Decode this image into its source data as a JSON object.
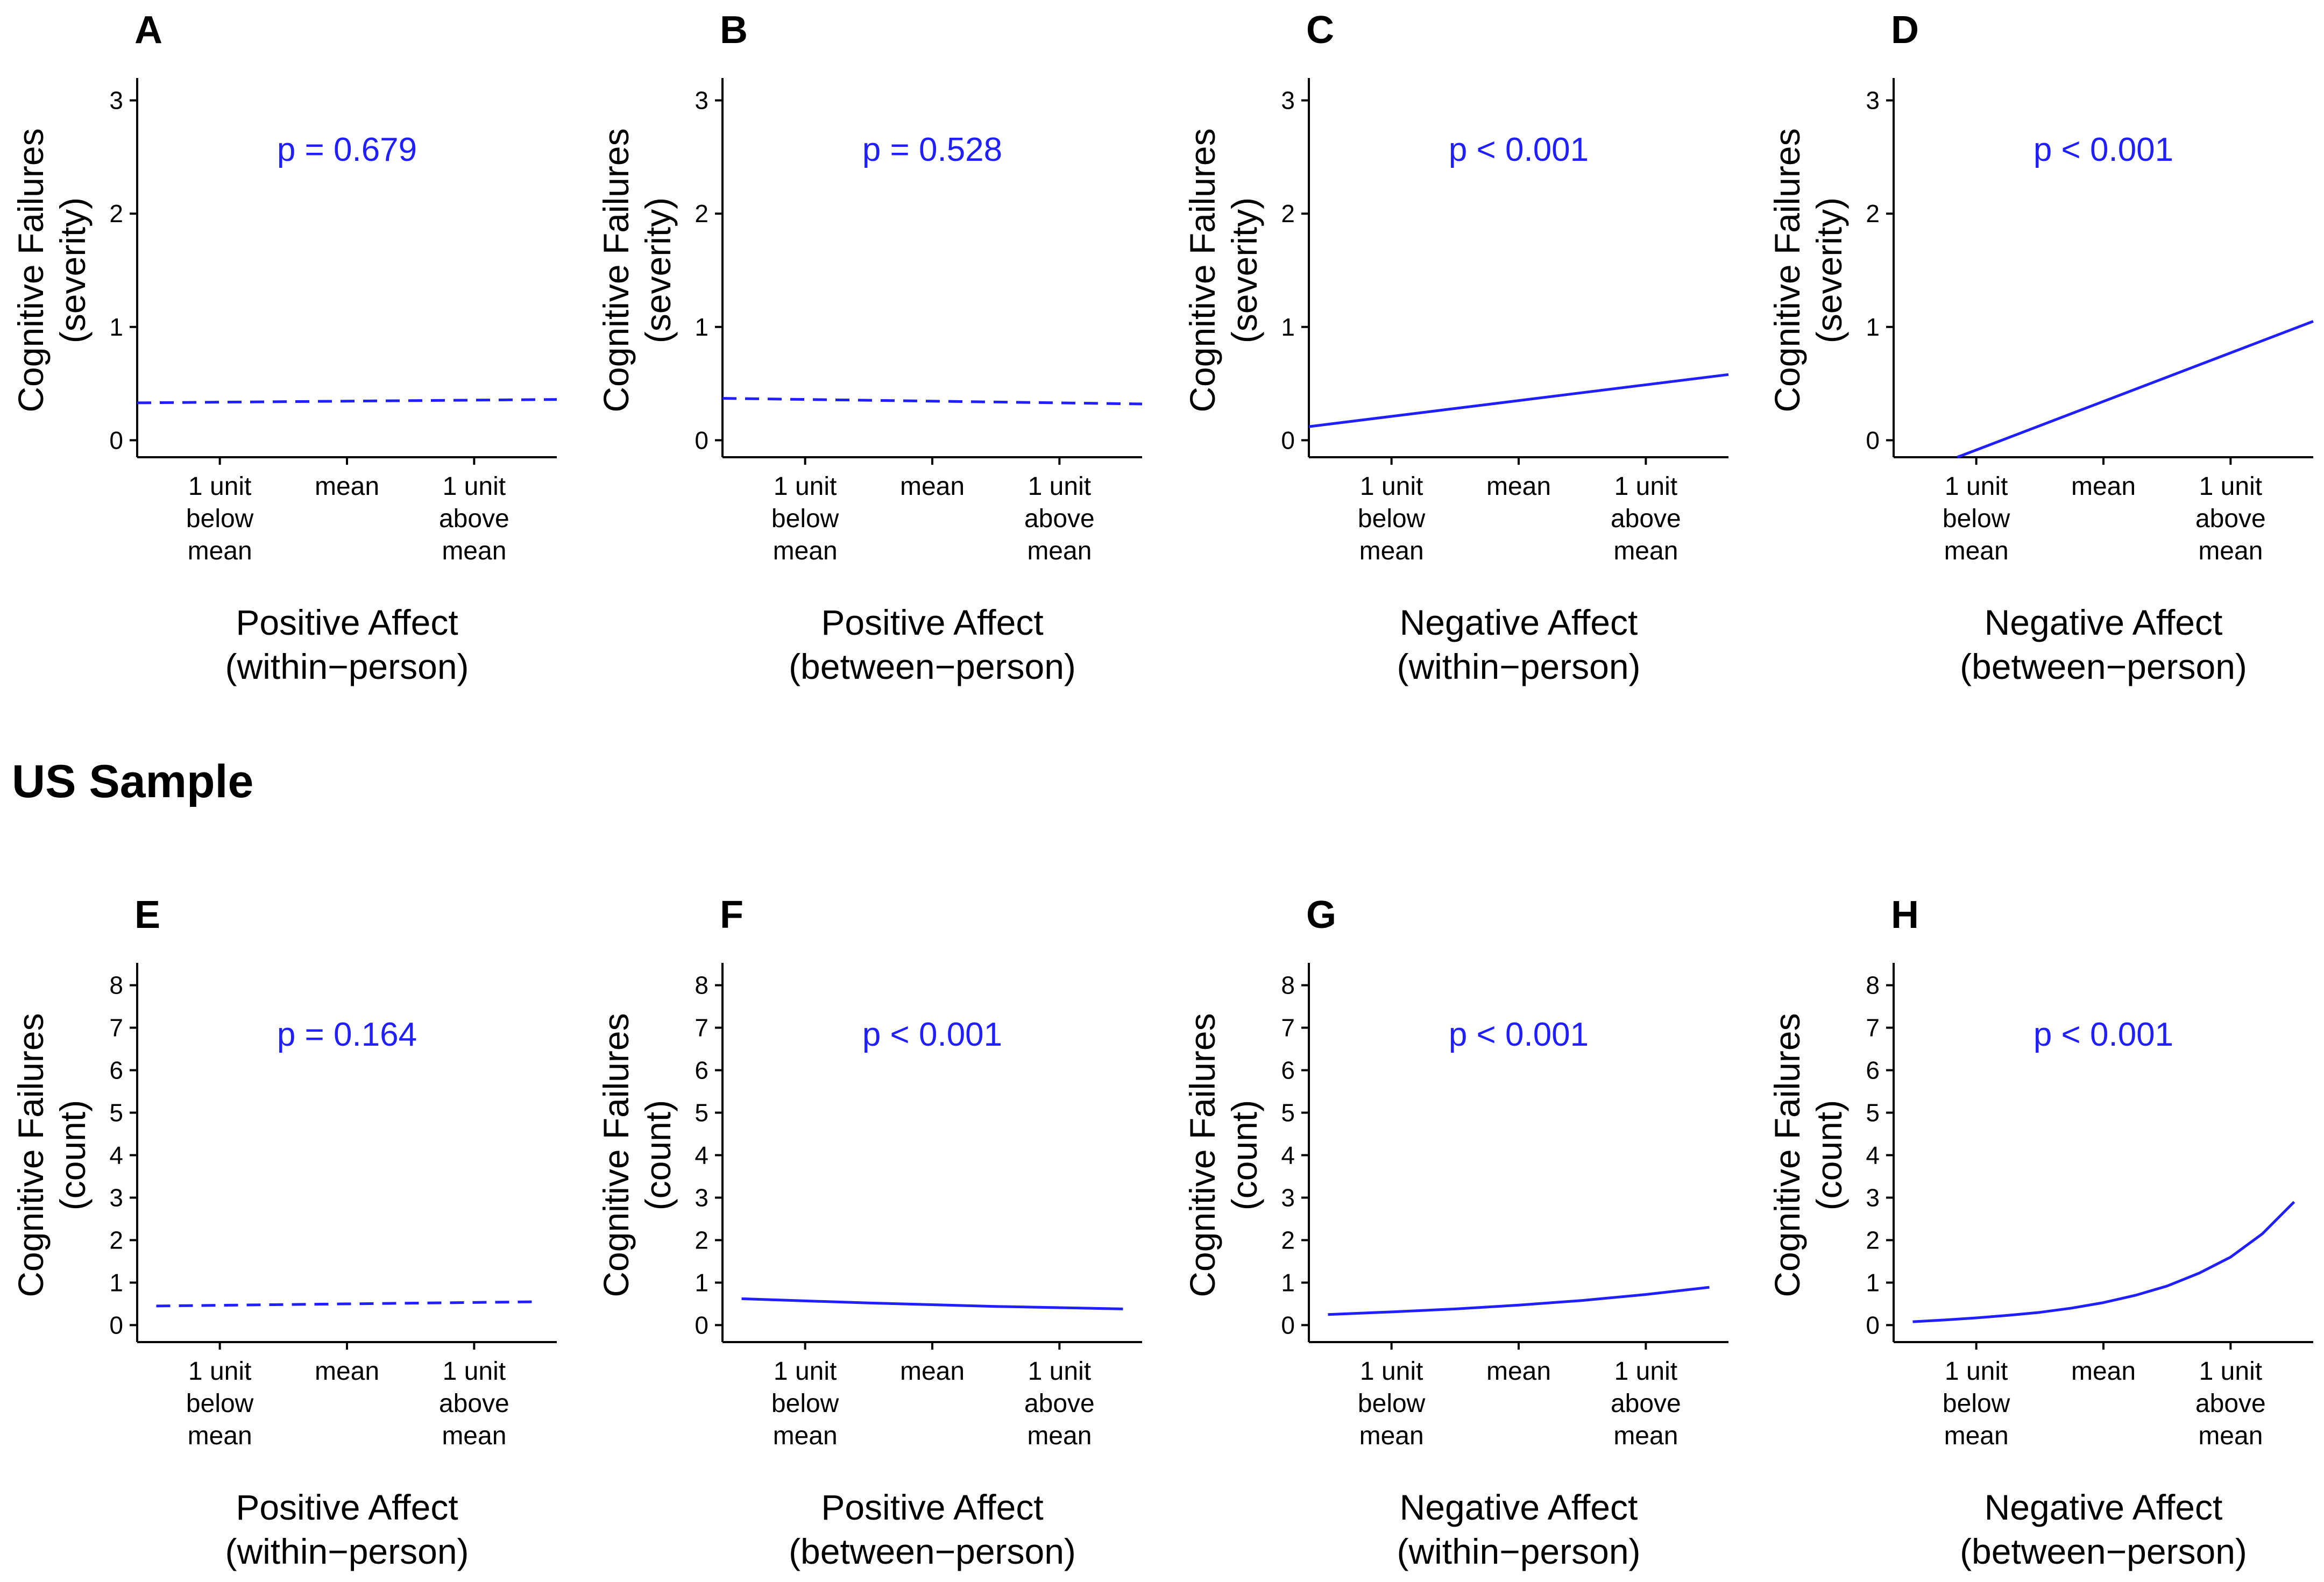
{
  "figure": {
    "section_label": "US Sample",
    "colors": {
      "line": "#1f1fff",
      "pvalue": "#1f1fff",
      "axis": "#000000"
    }
  },
  "chart_data": [
    {
      "panel": "A",
      "type": "line",
      "ylabel": [
        "Cognitive Failures",
        "(severity)"
      ],
      "xlabel": [
        "Positive Affect",
        "(within−person)"
      ],
      "ylim": [
        -0.15,
        3.15
      ],
      "yticks": [
        0,
        1,
        2,
        3
      ],
      "xticks": [
        {
          "x": -1,
          "label": [
            "1 unit",
            "below",
            "mean"
          ]
        },
        {
          "x": 0,
          "label": [
            "mean"
          ]
        },
        {
          "x": 1,
          "label": [
            "1 unit",
            "above",
            "mean"
          ]
        }
      ],
      "xlim": [
        -1.65,
        1.65
      ],
      "annotation": "p = 0.679",
      "series": [
        {
          "name": "fit",
          "style": "dashed",
          "x": [
            -1.65,
            1.65
          ],
          "y": [
            0.33,
            0.36
          ]
        }
      ]
    },
    {
      "panel": "B",
      "type": "line",
      "ylabel": [
        "Cognitive Failures",
        "(severity)"
      ],
      "xlabel": [
        "Positive Affect",
        "(between−person)"
      ],
      "ylim": [
        -0.15,
        3.15
      ],
      "yticks": [
        0,
        1,
        2,
        3
      ],
      "xticks": [
        {
          "x": -1,
          "label": [
            "1 unit",
            "below",
            "mean"
          ]
        },
        {
          "x": 0,
          "label": [
            "mean"
          ]
        },
        {
          "x": 1,
          "label": [
            "1 unit",
            "above",
            "mean"
          ]
        }
      ],
      "xlim": [
        -1.65,
        1.65
      ],
      "annotation": "p = 0.528",
      "series": [
        {
          "name": "fit",
          "style": "dashed",
          "x": [
            -1.65,
            1.65
          ],
          "y": [
            0.37,
            0.32
          ]
        }
      ]
    },
    {
      "panel": "C",
      "type": "line",
      "ylabel": [
        "Cognitive Failures",
        "(severity)"
      ],
      "xlabel": [
        "Negative Affect",
        "(within−person)"
      ],
      "ylim": [
        -0.15,
        3.15
      ],
      "yticks": [
        0,
        1,
        2,
        3
      ],
      "xticks": [
        {
          "x": -1,
          "label": [
            "1 unit",
            "below",
            "mean"
          ]
        },
        {
          "x": 0,
          "label": [
            "mean"
          ]
        },
        {
          "x": 1,
          "label": [
            "1 unit",
            "above",
            "mean"
          ]
        }
      ],
      "xlim": [
        -1.65,
        1.65
      ],
      "annotation": "p < 0.001",
      "series": [
        {
          "name": "fit",
          "style": "solid",
          "x": [
            -1.65,
            1.65
          ],
          "y": [
            0.12,
            0.58
          ]
        }
      ]
    },
    {
      "panel": "D",
      "type": "line",
      "ylabel": [
        "Cognitive Failures",
        "(severity)"
      ],
      "xlabel": [
        "Negative Affect",
        "(between−person)"
      ],
      "ylim": [
        -0.15,
        3.15
      ],
      "yticks": [
        0,
        1,
        2,
        3
      ],
      "xticks": [
        {
          "x": -1,
          "label": [
            "1 unit",
            "below",
            "mean"
          ]
        },
        {
          "x": 0,
          "label": [
            "mean"
          ]
        },
        {
          "x": 1,
          "label": [
            "1 unit",
            "above",
            "mean"
          ]
        }
      ],
      "xlim": [
        -1.65,
        1.65
      ],
      "annotation": "p < 0.001",
      "series": [
        {
          "name": "fit",
          "style": "solid",
          "x": [
            -1.15,
            1.65
          ],
          "y": [
            -0.15,
            1.05
          ]
        }
      ]
    },
    {
      "panel": "E",
      "type": "line",
      "ylabel": [
        "Cognitive Failures",
        "(count)"
      ],
      "xlabel": [
        "Positive Affect",
        "(within−person)"
      ],
      "ylim": [
        -0.4,
        8.4
      ],
      "yticks": [
        0,
        1,
        2,
        3,
        4,
        5,
        6,
        7,
        8
      ],
      "xticks": [
        {
          "x": -1,
          "label": [
            "1 unit",
            "below",
            "mean"
          ]
        },
        {
          "x": 0,
          "label": [
            "mean"
          ]
        },
        {
          "x": 1,
          "label": [
            "1 unit",
            "above",
            "mean"
          ]
        }
      ],
      "xlim": [
        -1.65,
        1.65
      ],
      "annotation": "p = 0.164",
      "series": [
        {
          "name": "fit",
          "style": "dashed",
          "x": [
            -1.5,
            1.5
          ],
          "y": [
            0.45,
            0.55
          ]
        }
      ]
    },
    {
      "panel": "F",
      "type": "line",
      "ylabel": [
        "Cognitive Failures",
        "(count)"
      ],
      "xlabel": [
        "Positive Affect",
        "(between−person)"
      ],
      "ylim": [
        -0.4,
        8.4
      ],
      "yticks": [
        0,
        1,
        2,
        3,
        4,
        5,
        6,
        7,
        8
      ],
      "xticks": [
        {
          "x": -1,
          "label": [
            "1 unit",
            "below",
            "mean"
          ]
        },
        {
          "x": 0,
          "label": [
            "mean"
          ]
        },
        {
          "x": 1,
          "label": [
            "1 unit",
            "above",
            "mean"
          ]
        }
      ],
      "xlim": [
        -1.65,
        1.65
      ],
      "annotation": "p < 0.001",
      "series": [
        {
          "name": "fit",
          "style": "solid",
          "x": [
            -1.5,
            -1.0,
            -0.5,
            0,
            0.5,
            1.0,
            1.5
          ],
          "y": [
            0.62,
            0.57,
            0.52,
            0.48,
            0.44,
            0.41,
            0.38
          ]
        }
      ]
    },
    {
      "panel": "G",
      "type": "line",
      "ylabel": [
        "Cognitive Failures",
        "(count)"
      ],
      "xlabel": [
        "Negative Affect",
        "(within−person)"
      ],
      "ylim": [
        -0.4,
        8.4
      ],
      "yticks": [
        0,
        1,
        2,
        3,
        4,
        5,
        6,
        7,
        8
      ],
      "xticks": [
        {
          "x": -1,
          "label": [
            "1 unit",
            "below",
            "mean"
          ]
        },
        {
          "x": 0,
          "label": [
            "mean"
          ]
        },
        {
          "x": 1,
          "label": [
            "1 unit",
            "above",
            "mean"
          ]
        }
      ],
      "xlim": [
        -1.65,
        1.65
      ],
      "annotation": "p < 0.001",
      "series": [
        {
          "name": "fit",
          "style": "solid",
          "x": [
            -1.5,
            -1.0,
            -0.5,
            0,
            0.5,
            1.0,
            1.5
          ],
          "y": [
            0.25,
            0.31,
            0.38,
            0.47,
            0.58,
            0.72,
            0.89
          ]
        }
      ]
    },
    {
      "panel": "H",
      "type": "line",
      "ylabel": [
        "Cognitive Failures",
        "(count)"
      ],
      "xlabel": [
        "Negative Affect",
        "(between−person)"
      ],
      "ylim": [
        -0.4,
        8.4
      ],
      "yticks": [
        0,
        1,
        2,
        3,
        4,
        5,
        6,
        7,
        8
      ],
      "xticks": [
        {
          "x": -1,
          "label": [
            "1 unit",
            "below",
            "mean"
          ]
        },
        {
          "x": 0,
          "label": [
            "mean"
          ]
        },
        {
          "x": 1,
          "label": [
            "1 unit",
            "above",
            "mean"
          ]
        }
      ],
      "xlim": [
        -1.65,
        1.65
      ],
      "annotation": "p < 0.001",
      "series": [
        {
          "name": "fit",
          "style": "solid",
          "x": [
            -1.5,
            -1.25,
            -1.0,
            -0.75,
            -0.5,
            -0.25,
            0,
            0.25,
            0.5,
            0.75,
            1.0,
            1.25,
            1.5
          ],
          "y": [
            0.08,
            0.12,
            0.17,
            0.23,
            0.3,
            0.4,
            0.53,
            0.7,
            0.92,
            1.22,
            1.6,
            2.15,
            2.9
          ]
        }
      ]
    }
  ]
}
